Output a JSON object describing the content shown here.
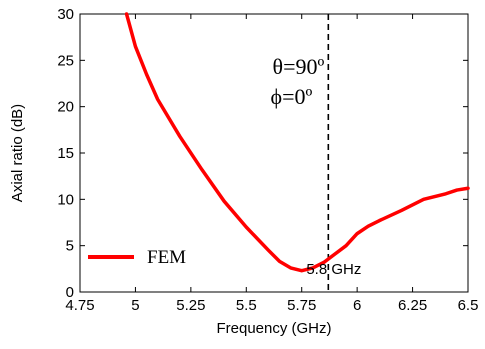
{
  "chart_data": {
    "type": "line",
    "xlabel": "Frequency (GHz)",
    "ylabel": "Axial ratio (dB)",
    "xlim": [
      4.75,
      6.5
    ],
    "ylim": [
      0,
      30
    ],
    "xticks": [
      4.75,
      5,
      5.25,
      5.5,
      5.75,
      6,
      6.25,
      6.5
    ],
    "xtick_labels": [
      "4.75",
      "5",
      "5.25",
      "5.5",
      "5.75",
      "6",
      "6.25",
      "6.5"
    ],
    "yticks": [
      0,
      5,
      10,
      15,
      20,
      25,
      30
    ],
    "ytick_labels": [
      "0",
      "5",
      "10",
      "15",
      "20",
      "25",
      "30"
    ],
    "grid": false,
    "legend": {
      "location": "lower-left"
    },
    "series": [
      {
        "name": "FEM",
        "color": "#ff0000",
        "x": [
          4.96,
          5.0,
          5.05,
          5.1,
          5.2,
          5.3,
          5.4,
          5.5,
          5.6,
          5.65,
          5.7,
          5.75,
          5.8,
          5.85,
          5.9,
          5.95,
          6.0,
          6.05,
          6.1,
          6.2,
          6.3,
          6.4,
          6.45,
          6.5
        ],
        "values": [
          30.0,
          26.5,
          23.5,
          20.8,
          16.8,
          13.2,
          9.8,
          7.0,
          4.5,
          3.3,
          2.6,
          2.3,
          2.6,
          3.2,
          4.1,
          5.0,
          6.3,
          7.1,
          7.7,
          8.8,
          10.0,
          10.6,
          11.0,
          11.2
        ]
      }
    ],
    "marker_line": {
      "x": 5.87,
      "style": "dashed",
      "color": "#000000"
    },
    "annotations": {
      "theta": "θ=90º",
      "phi": "ϕ=0º",
      "frequency": "5.8 GHz"
    }
  }
}
